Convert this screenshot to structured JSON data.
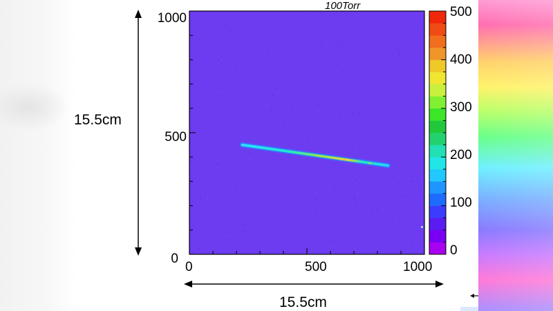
{
  "chart_data": {
    "type": "heatmap",
    "title": "100Torr",
    "xlim": [
      0,
      1000
    ],
    "ylim": [
      0,
      1000
    ],
    "x_ticks": [
      "0",
      "500",
      "1000"
    ],
    "y_ticks": [
      "0",
      "500",
      "1000"
    ],
    "background_value": 50,
    "track": {
      "start": [
        225,
        450
      ],
      "end": [
        845,
        365
      ],
      "peak_value": 350
    },
    "colorbar": {
      "range": [
        0,
        500
      ],
      "ticks": [
        "0",
        "100",
        "200",
        "300",
        "400",
        "500"
      ],
      "colors": [
        "#a800f0",
        "#7a00f5",
        "#5a1cf0",
        "#3c3cff",
        "#1e6bff",
        "#1e95ff",
        "#22c8ff",
        "#22e6e6",
        "#22e0b4",
        "#22d26e",
        "#22c83c",
        "#3ce628",
        "#82f032",
        "#c8f03c",
        "#f0e632",
        "#f0c828",
        "#f09628",
        "#f06e1e",
        "#f04b14",
        "#f0280a"
      ]
    },
    "dimension_labels": {
      "horizontal": "15.5cm",
      "vertical": "15.5cm"
    }
  },
  "colors": {
    "plot_background": "#6d3cf0",
    "frame": "#000000"
  }
}
